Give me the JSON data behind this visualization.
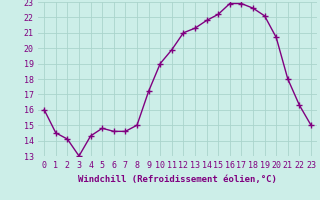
{
  "x": [
    0,
    1,
    2,
    3,
    4,
    5,
    6,
    7,
    8,
    9,
    10,
    11,
    12,
    13,
    14,
    15,
    16,
    17,
    18,
    19,
    20,
    21,
    22,
    23
  ],
  "y": [
    16.0,
    14.5,
    14.1,
    13.0,
    14.3,
    14.8,
    14.6,
    14.6,
    15.0,
    17.2,
    19.0,
    19.9,
    21.0,
    21.3,
    21.8,
    22.2,
    22.9,
    22.9,
    22.6,
    22.1,
    20.7,
    18.0,
    16.3,
    15.0
  ],
  "color": "#800080",
  "bg_color": "#cceee8",
  "grid_color": "#aad4cc",
  "xlabel": "Windchill (Refroidissement éolien,°C)",
  "ylim": [
    13,
    23
  ],
  "xlim": [
    -0.5,
    23.5
  ],
  "yticks": [
    13,
    14,
    15,
    16,
    17,
    18,
    19,
    20,
    21,
    22,
    23
  ],
  "xticks": [
    0,
    1,
    2,
    3,
    4,
    5,
    6,
    7,
    8,
    9,
    10,
    11,
    12,
    13,
    14,
    15,
    16,
    17,
    18,
    19,
    20,
    21,
    22,
    23
  ],
  "line_color": "#800080",
  "marker": "+",
  "marker_size": 4,
  "linewidth": 1.0,
  "xlabel_fontsize": 6.5,
  "tick_fontsize": 6.0
}
